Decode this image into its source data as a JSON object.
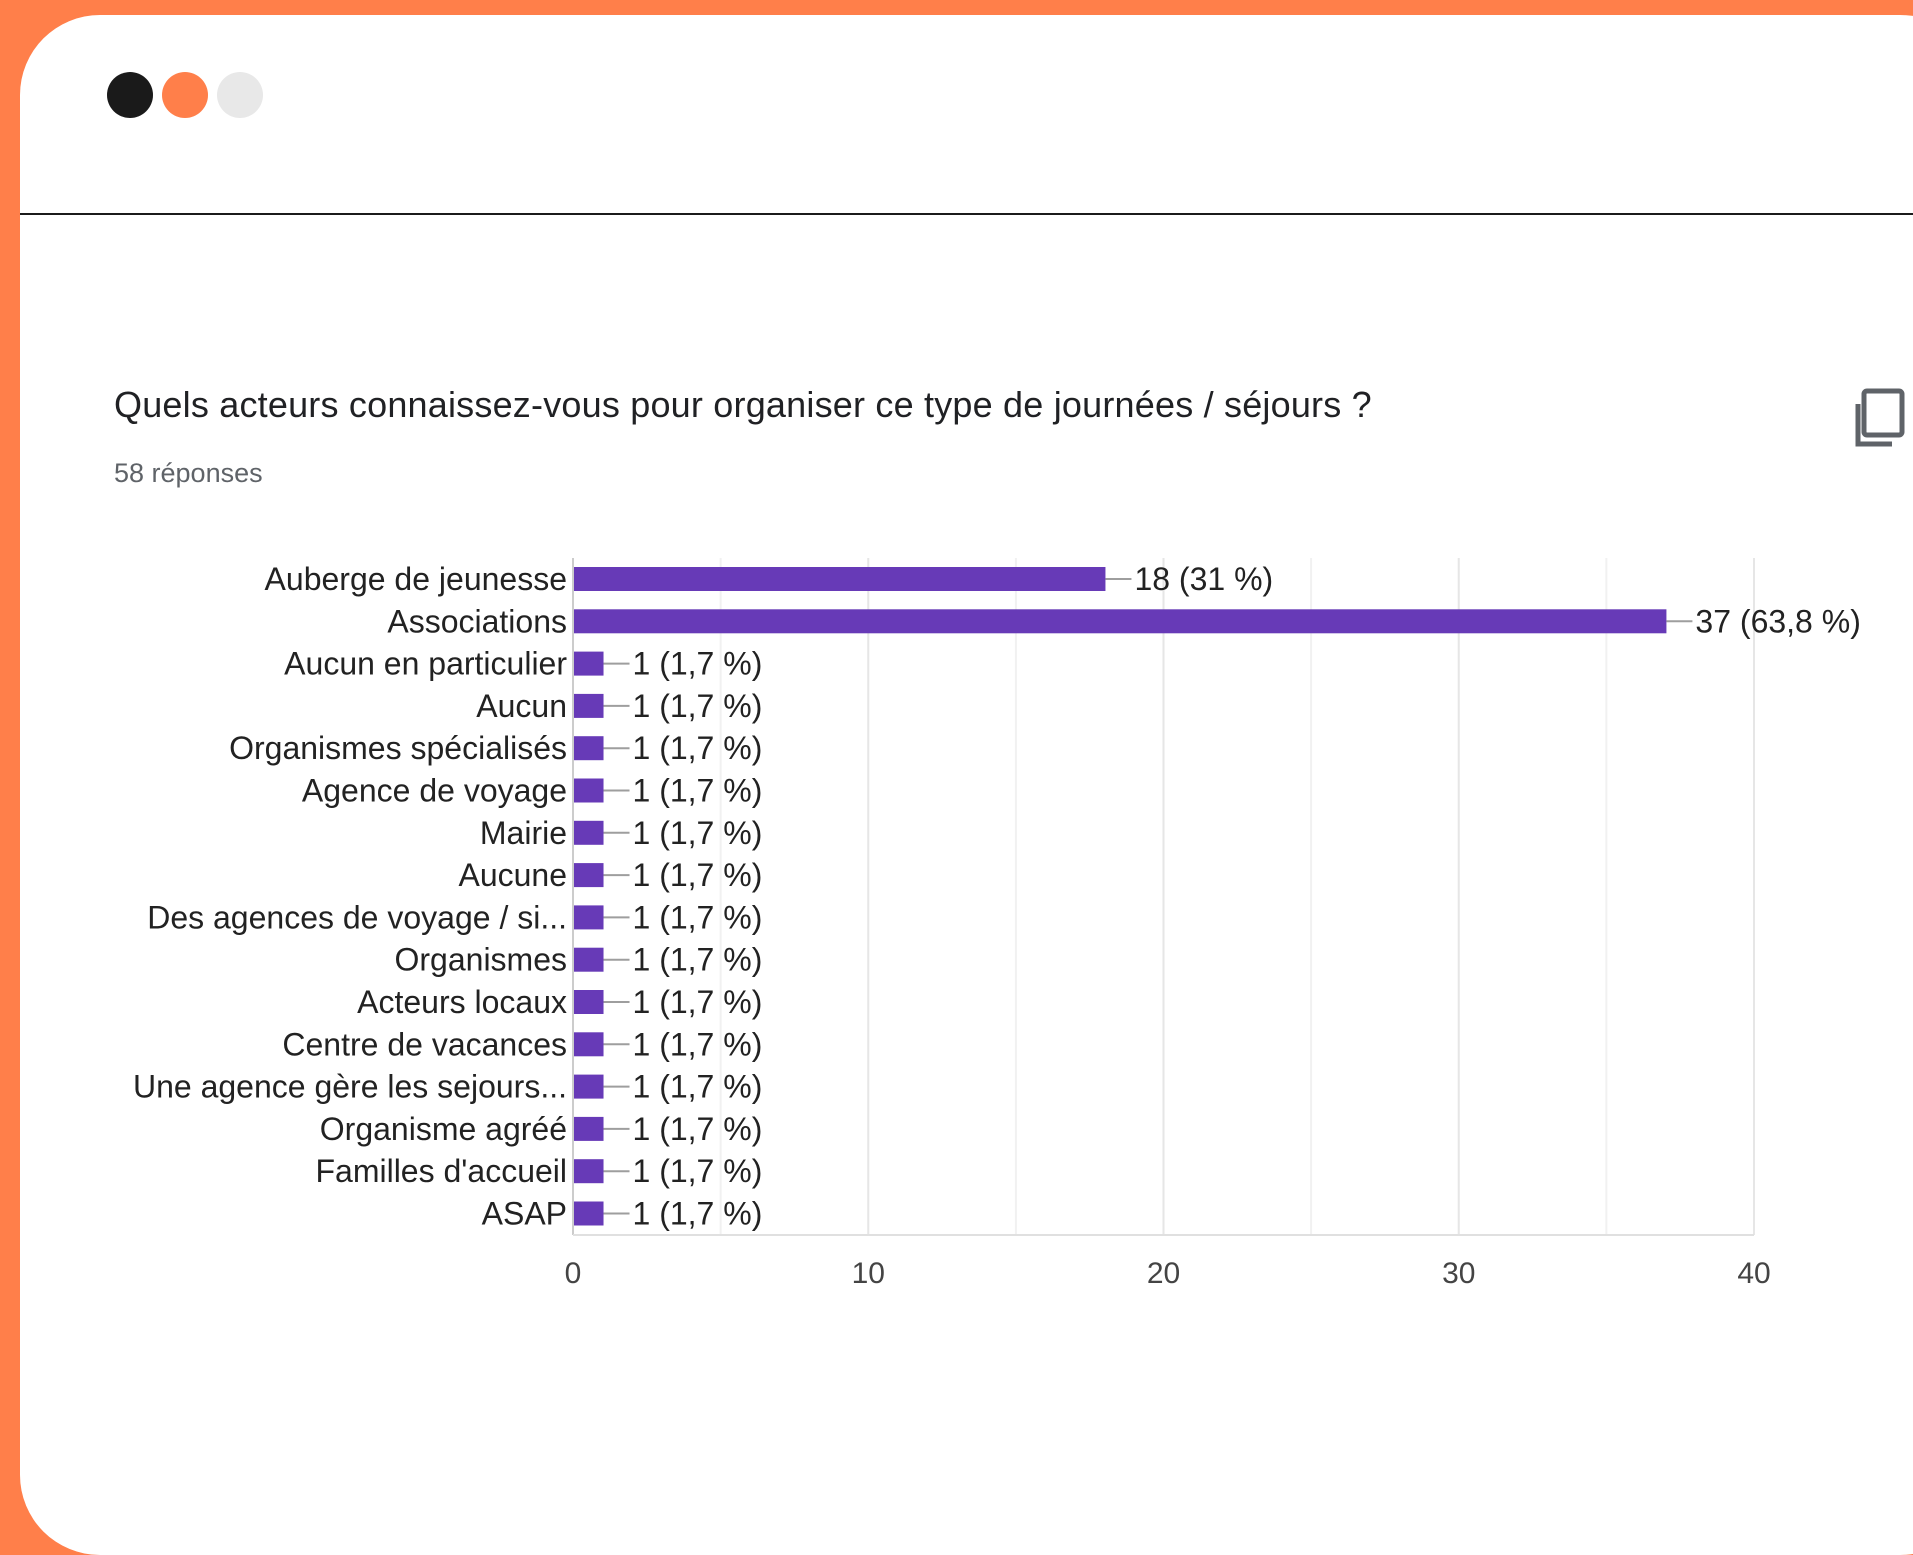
{
  "window": {
    "dot_colors": [
      "#1a1a1a",
      "#FF7F4A",
      "#e8e8e8"
    ]
  },
  "question": {
    "title": "Quels acteurs connaissez-vous pour organiser ce type de journées / séjours ?",
    "responses": "58 réponses",
    "copy_icon": "copy-icon"
  },
  "colors": {
    "frame": "#FF7F4A",
    "bar": "#673AB7"
  },
  "chart_data": {
    "type": "bar",
    "orientation": "horizontal",
    "categories": [
      "Auberge de jeunesse",
      "Associations",
      "Aucun en particulier",
      "Aucun",
      "Organismes spécialisés",
      "Agence de voyage",
      "Mairie",
      "Aucune",
      "Des agences de voyage / si...",
      "Organismes",
      "Acteurs locaux",
      "Centre de vacances",
      "Une agence gère les sejours...",
      "Organisme agréé",
      "Familles d'accueil",
      "ASAP"
    ],
    "values": [
      18,
      37,
      1,
      1,
      1,
      1,
      1,
      1,
      1,
      1,
      1,
      1,
      1,
      1,
      1,
      1
    ],
    "value_labels": [
      "18 (31 %)",
      "37 (63,8 %)",
      "1 (1,7 %)",
      "1 (1,7 %)",
      "1 (1,7 %)",
      "1 (1,7 %)",
      "1 (1,7 %)",
      "1 (1,7 %)",
      "1 (1,7 %)",
      "1 (1,7 %)",
      "1 (1,7 %)",
      "1 (1,7 %)",
      "1 (1,7 %)",
      "1 (1,7 %)",
      "1 (1,7 %)",
      "1 (1,7 %)"
    ],
    "xlim": [
      0,
      40
    ],
    "xticks": [
      0,
      10,
      20,
      30,
      40
    ],
    "grid": true,
    "title": "",
    "xlabel": "",
    "ylabel": ""
  }
}
